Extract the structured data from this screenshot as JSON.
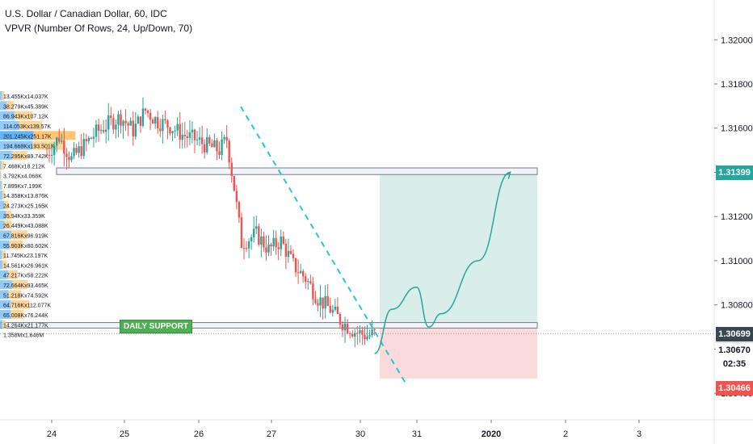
{
  "header": {
    "title": "U.S. Dollar / Canadian Dollar, 60, IDC",
    "indicator": "VPVR (Number Of Rows, 24, Up/Down, 70)"
  },
  "colors": {
    "up": "#26a69a",
    "down": "#ef5350",
    "profit_zone": "#d9eeeb",
    "loss_zone": "#fadada",
    "trend": "#26c6da",
    "vp_up": "#64b5f6",
    "vp_down": "#ffcc80",
    "vp_poc_up": "#2196f3",
    "vp_poc_down": "#ffb74d"
  },
  "annotations": {
    "daily_support": "DAILY SUPPORT"
  },
  "price_tags": {
    "target": "1.31399",
    "entry": "1.30699",
    "current": "1.30670",
    "countdown": "02:35",
    "stop": "1.30466"
  },
  "chart_data": {
    "type": "line",
    "title": "U.S. Dollar / Canadian Dollar, 60, IDC",
    "x_ticks": [
      "24",
      "25",
      "26",
      "27",
      "30",
      "31",
      "2020",
      "2",
      "3"
    ],
    "y_ticks": [
      1.32,
      1.318,
      1.316,
      1.314,
      1.312,
      1.31,
      1.308,
      1.306,
      1.304
    ],
    "ylim": [
      1.3028,
      1.3218
    ],
    "series": [
      {
        "price_path": [
          [
            0.0,
            1.3148
          ],
          [
            0.5,
            1.3156
          ],
          [
            1.0,
            1.3146
          ],
          [
            1.5,
            1.3152
          ],
          [
            2.0,
            1.3158
          ],
          [
            2.5,
            1.3162
          ],
          [
            3.0,
            1.3165
          ],
          [
            3.5,
            1.3159
          ],
          [
            4.0,
            1.3168
          ],
          [
            4.5,
            1.3163
          ],
          [
            5.0,
            1.3161
          ],
          [
            5.5,
            1.3157
          ],
          [
            6.0,
            1.3155
          ],
          [
            6.5,
            1.3152
          ],
          [
            7.0,
            1.315
          ],
          [
            7.3,
            1.3155
          ],
          [
            7.6,
            1.3133
          ],
          [
            7.9,
            1.3108
          ],
          [
            8.5,
            1.3112
          ],
          [
            9.0,
            1.3105
          ],
          [
            9.5,
            1.3109
          ],
          [
            10.0,
            1.3098
          ],
          [
            10.5,
            1.3092
          ],
          [
            11.0,
            1.3083
          ],
          [
            11.5,
            1.3078
          ],
          [
            12.0,
            1.3072
          ],
          [
            12.5,
            1.3068
          ],
          [
            13.0,
            1.3066
          ],
          [
            13.3,
            1.3067
          ]
        ]
      }
    ],
    "projection": [
      [
        13.3,
        1.3058
      ],
      [
        14.0,
        1.3078
      ],
      [
        15.0,
        1.3088
      ],
      [
        15.5,
        1.307
      ],
      [
        16.0,
        1.3076
      ],
      [
        17.5,
        1.31
      ],
      [
        18.8,
        1.314
      ]
    ],
    "levels": {
      "resistance_zone": [
        1.3139,
        1.3142
      ],
      "support_zone": [
        1.30695,
        1.3072
      ],
      "target": 1.31399,
      "entry": 1.30699,
      "stop": 1.30466
    },
    "volume_profile": [
      {
        "price": 1.31745,
        "label": "13.455Kx14.037K",
        "up": 13.455,
        "down": 14.037
      },
      {
        "price": 1.317,
        "label": "38.279Kx45.389K",
        "up": 38.279,
        "down": 45.389
      },
      {
        "price": 1.31655,
        "label": "86.943Kx107.12K",
        "up": 86.943,
        "down": 107.12
      },
      {
        "price": 1.3161,
        "label": "114.053Kx139.57K",
        "up": 114.053,
        "down": 139.57
      },
      {
        "price": 1.31565,
        "label": "201.245Kx251.17K",
        "up": 201.245,
        "down": 251.17
      },
      {
        "price": 1.3152,
        "label": "194.668Kx193.501K",
        "up": 194.668,
        "down": 193.501
      },
      {
        "price": 1.31475,
        "label": "72.295Kx89.742K",
        "up": 72.295,
        "down": 89.742
      },
      {
        "price": 1.3143,
        "label": "7.468Kx18.212K",
        "up": 7.468,
        "down": 18.212
      },
      {
        "price": 1.31385,
        "label": "3.792Kx4.068K",
        "up": 3.792,
        "down": 4.068
      },
      {
        "price": 1.3134,
        "label": "7.899Kx7.199K",
        "up": 7.899,
        "down": 7.199
      },
      {
        "price": 1.31295,
        "label": "14.358Kx13.876K",
        "up": 14.358,
        "down": 13.876
      },
      {
        "price": 1.3125,
        "label": "24.273Kx25.165K",
        "up": 24.273,
        "down": 25.165
      },
      {
        "price": 1.31205,
        "label": "35.94Kx33.359K",
        "up": 35.94,
        "down": 33.359
      },
      {
        "price": 1.3116,
        "label": "26.449Kx43.088K",
        "up": 26.449,
        "down": 43.088
      },
      {
        "price": 1.31115,
        "label": "67.816Kx96.919K",
        "up": 67.816,
        "down": 96.919
      },
      {
        "price": 1.3107,
        "label": "55.903Kx80.602K",
        "up": 55.903,
        "down": 80.602
      },
      {
        "price": 1.31025,
        "label": "11.745Kx23.197K",
        "up": 11.745,
        "down": 23.197
      },
      {
        "price": 1.3098,
        "label": "14.561Kx26.961K",
        "up": 14.561,
        "down": 26.961
      },
      {
        "price": 1.30935,
        "label": "47.217Kx58.222K",
        "up": 47.217,
        "down": 58.222
      },
      {
        "price": 1.3089,
        "label": "72.664Kx93.465K",
        "up": 72.664,
        "down": 93.465
      },
      {
        "price": 1.30845,
        "label": "51.218Kx74.592K",
        "up": 51.218,
        "down": 74.592
      },
      {
        "price": 1.308,
        "label": "64.716Kx112.077K",
        "up": 64.716,
        "down": 112.077
      },
      {
        "price": 1.30755,
        "label": "65.008Kx76.244K",
        "up": 65.008,
        "down": 76.244
      },
      {
        "price": 1.3071,
        "label": "14.264Kx21.177K",
        "up": 14.264,
        "down": 21.177
      },
      {
        "price": 1.30665,
        "label": "1.358Mx1.646M",
        "up": 1358,
        "down": 1646
      }
    ]
  }
}
